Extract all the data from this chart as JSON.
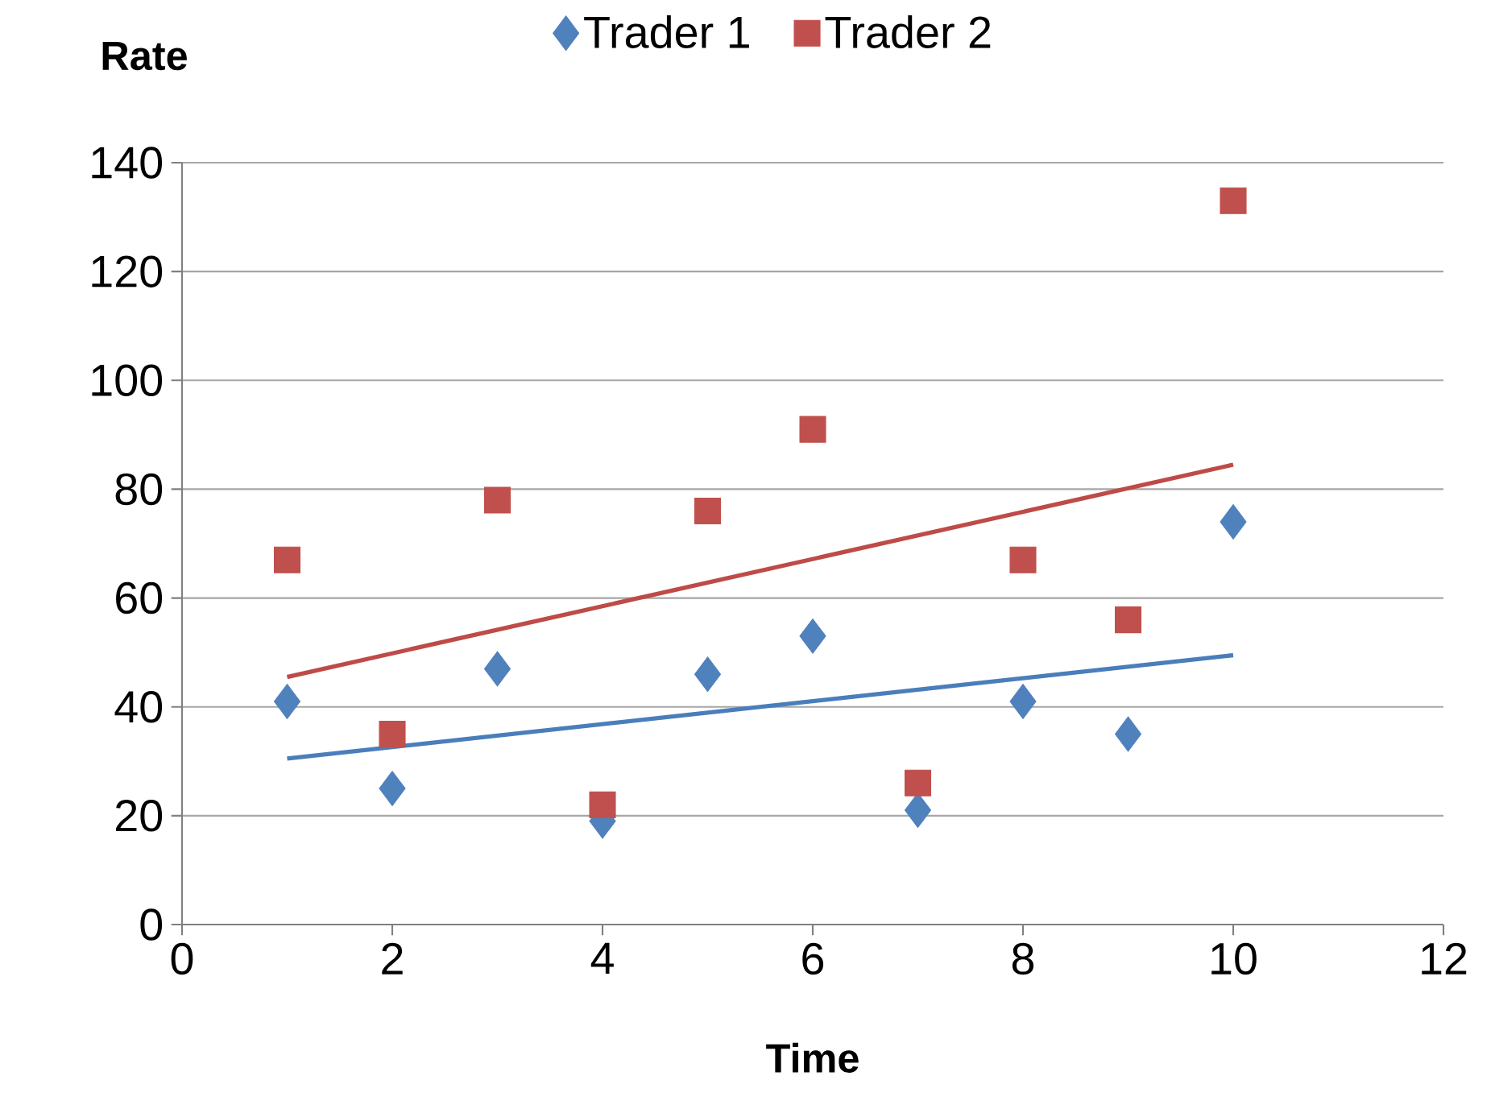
{
  "chart_data": {
    "type": "scatter",
    "xlabel": "Time",
    "ylabel": "Rate",
    "xlim": [
      0,
      12
    ],
    "ylim": [
      0,
      140
    ],
    "xticks": [
      0,
      2,
      4,
      6,
      8,
      10,
      12
    ],
    "yticks": [
      0,
      20,
      40,
      60,
      80,
      100,
      120,
      140
    ],
    "grid": "y",
    "legend": "top",
    "series": [
      {
        "name": "Trader 1",
        "color": "#4f81bd",
        "marker": "diamond",
        "x": [
          1,
          2,
          3,
          4,
          5,
          6,
          7,
          8,
          9,
          10
        ],
        "values": [
          41,
          25,
          47,
          19,
          46,
          53,
          21,
          41,
          35,
          74
        ]
      },
      {
        "name": "Trader 2",
        "color": "#c0504d",
        "marker": "square",
        "x": [
          1,
          2,
          3,
          4,
          5,
          6,
          7,
          8,
          9,
          10
        ],
        "values": [
          67,
          35,
          78,
          22,
          76,
          91,
          26,
          67,
          56,
          133
        ]
      },
      {
        "type": "line",
        "color": "#4a7ebb",
        "marker": "none",
        "line_style": "solid",
        "x": [
          1,
          10
        ],
        "values": [
          30.5,
          49.5
        ]
      },
      {
        "type": "line",
        "color": "#be4b48",
        "marker": "none",
        "line_style": "solid",
        "x": [
          1,
          10
        ],
        "values": [
          45.5,
          84.5
        ]
      }
    ]
  }
}
